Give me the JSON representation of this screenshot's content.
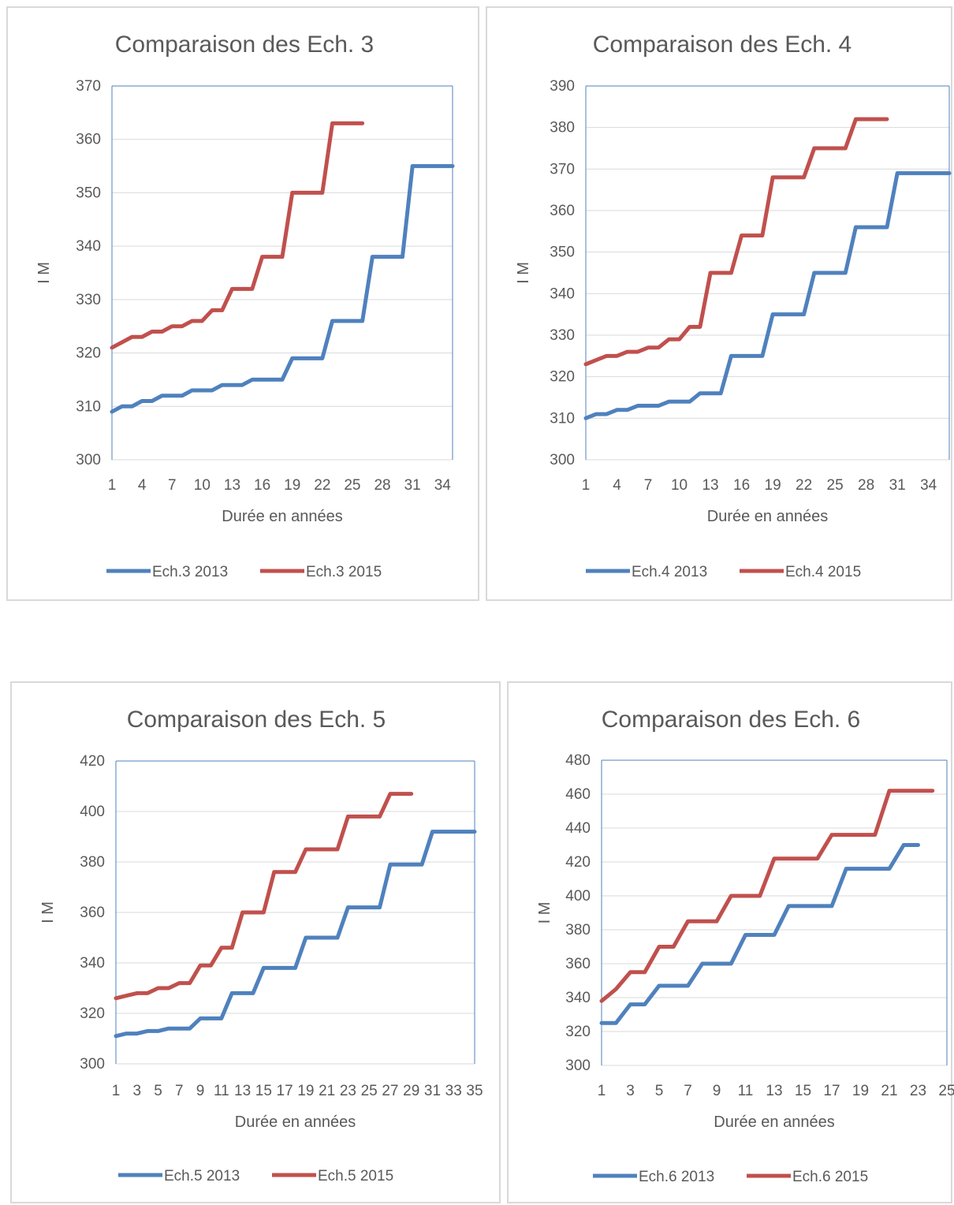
{
  "colors": {
    "series_2013": "#4f81bd",
    "series_2015": "#c0504d",
    "grid": "#d9d9d9",
    "plot_border": "#4f81bd",
    "text": "#595959"
  },
  "chart_data": [
    {
      "type": "line",
      "title": "Comparaison des Ech. 3",
      "xlabel": "Durée en années",
      "ylabel": "I M",
      "ylim": [
        300,
        370
      ],
      "yticks": [
        300,
        310,
        320,
        330,
        340,
        350,
        360,
        370
      ],
      "xlim": [
        1,
        35
      ],
      "xticks": [
        1,
        4,
        7,
        10,
        13,
        16,
        19,
        22,
        25,
        28,
        31,
        34
      ],
      "grid": true,
      "legend": "bottom",
      "series": [
        {
          "name": "Ech.3 2013",
          "x": [
            1,
            2,
            3,
            4,
            5,
            6,
            7,
            8,
            9,
            10,
            11,
            12,
            13,
            14,
            15,
            16,
            17,
            18,
            19,
            20,
            21,
            22,
            23,
            24,
            25,
            26,
            27,
            28,
            29,
            30,
            31,
            32,
            33,
            34,
            35
          ],
          "values": [
            309,
            310,
            310,
            311,
            311,
            312,
            312,
            312,
            313,
            313,
            313,
            314,
            314,
            314,
            315,
            315,
            315,
            315,
            319,
            319,
            319,
            319,
            326,
            326,
            326,
            326,
            338,
            338,
            338,
            338,
            355,
            355,
            355,
            355,
            355
          ]
        },
        {
          "name": "Ech.3 2015",
          "x": [
            1,
            2,
            3,
            4,
            5,
            6,
            7,
            8,
            9,
            10,
            11,
            12,
            13,
            14,
            15,
            16,
            17,
            18,
            19,
            20,
            21,
            22,
            23,
            24,
            25,
            26
          ],
          "values": [
            321,
            322,
            323,
            323,
            324,
            324,
            325,
            325,
            326,
            326,
            328,
            328,
            332,
            332,
            332,
            338,
            338,
            338,
            350,
            350,
            350,
            350,
            363,
            363,
            363,
            363
          ]
        }
      ]
    },
    {
      "type": "line",
      "title": "Comparaison des Ech. 4",
      "xlabel": "Durée en années",
      "ylabel": "I M",
      "ylim": [
        300,
        390
      ],
      "yticks": [
        300,
        310,
        320,
        330,
        340,
        350,
        360,
        370,
        380,
        390
      ],
      "xlim": [
        1,
        36
      ],
      "xticks": [
        1,
        4,
        7,
        10,
        13,
        16,
        19,
        22,
        25,
        28,
        31,
        34
      ],
      "grid": true,
      "legend": "bottom",
      "series": [
        {
          "name": "Ech.4 2013",
          "x": [
            1,
            2,
            3,
            4,
            5,
            6,
            7,
            8,
            9,
            10,
            11,
            12,
            13,
            14,
            15,
            16,
            17,
            18,
            19,
            20,
            21,
            22,
            23,
            24,
            25,
            26,
            27,
            28,
            29,
            30,
            31,
            32,
            33,
            34,
            35,
            36
          ],
          "values": [
            310,
            311,
            311,
            312,
            312,
            313,
            313,
            313,
            314,
            314,
            314,
            316,
            316,
            316,
            325,
            325,
            325,
            325,
            335,
            335,
            335,
            335,
            345,
            345,
            345,
            345,
            356,
            356,
            356,
            356,
            369,
            369,
            369,
            369,
            369,
            369
          ]
        },
        {
          "name": "Ech.4 2015",
          "x": [
            1,
            2,
            3,
            4,
            5,
            6,
            7,
            8,
            9,
            10,
            11,
            12,
            13,
            14,
            15,
            16,
            17,
            18,
            19,
            20,
            21,
            22,
            23,
            24,
            25,
            26,
            27,
            28,
            29,
            30
          ],
          "values": [
            323,
            324,
            325,
            325,
            326,
            326,
            327,
            327,
            329,
            329,
            332,
            332,
            345,
            345,
            345,
            354,
            354,
            354,
            368,
            368,
            368,
            368,
            375,
            375,
            375,
            375,
            382,
            382,
            382,
            382
          ]
        }
      ]
    },
    {
      "type": "line",
      "title": "Comparaison des Ech. 5",
      "xlabel": "Durée en années",
      "ylabel": "I M",
      "ylim": [
        300,
        420
      ],
      "yticks": [
        300,
        320,
        340,
        360,
        380,
        400,
        420
      ],
      "xlim": [
        1,
        35
      ],
      "xticks": [
        1,
        3,
        5,
        7,
        9,
        11,
        13,
        15,
        17,
        19,
        21,
        23,
        25,
        27,
        29,
        31,
        33,
        35
      ],
      "xticklabels": [
        "1",
        "3",
        "5",
        "7",
        "9",
        "11",
        "13",
        "15",
        "17",
        "19",
        "21",
        "23",
        "25",
        "27",
        "29",
        "31",
        "33",
        "35"
      ],
      "grid": true,
      "legend": "bottom",
      "series": [
        {
          "name": "Ech.5 2013",
          "x": [
            1,
            2,
            3,
            4,
            5,
            6,
            7,
            8,
            9,
            10,
            11,
            12,
            13,
            14,
            15,
            16,
            17,
            18,
            19,
            20,
            21,
            22,
            23,
            24,
            25,
            26,
            27,
            28,
            29,
            30,
            31,
            32,
            33,
            34,
            35
          ],
          "values": [
            311,
            312,
            312,
            313,
            313,
            314,
            314,
            314,
            318,
            318,
            318,
            328,
            328,
            328,
            338,
            338,
            338,
            338,
            350,
            350,
            350,
            350,
            362,
            362,
            362,
            362,
            379,
            379,
            379,
            379,
            392,
            392,
            392,
            392,
            392
          ]
        },
        {
          "name": "Ech.5 2015",
          "x": [
            1,
            2,
            3,
            4,
            5,
            6,
            7,
            8,
            9,
            10,
            11,
            12,
            13,
            14,
            15,
            16,
            17,
            18,
            19,
            20,
            21,
            22,
            23,
            24,
            25,
            26,
            27,
            28,
            29
          ],
          "values": [
            326,
            327,
            328,
            328,
            330,
            330,
            332,
            332,
            339,
            339,
            346,
            346,
            360,
            360,
            360,
            376,
            376,
            376,
            385,
            385,
            385,
            385,
            398,
            398,
            398,
            398,
            407,
            407,
            407
          ]
        }
      ]
    },
    {
      "type": "line",
      "title": "Comparaison des Ech. 6",
      "xlabel": "Durée en années",
      "ylabel": "I M",
      "ylim": [
        300,
        480
      ],
      "yticks": [
        300,
        320,
        340,
        360,
        380,
        400,
        420,
        440,
        460,
        480
      ],
      "xlim": [
        1,
        25
      ],
      "xticks": [
        1,
        3,
        5,
        7,
        9,
        11,
        13,
        15,
        17,
        19,
        21,
        23,
        25
      ],
      "grid": true,
      "legend": "bottom",
      "series": [
        {
          "name": "Ech.6 2013",
          "x": [
            1,
            2,
            3,
            4,
            5,
            6,
            7,
            8,
            9,
            10,
            11,
            12,
            13,
            14,
            15,
            16,
            17,
            18,
            19,
            20,
            21,
            22,
            23
          ],
          "values": [
            325,
            325,
            336,
            336,
            347,
            347,
            347,
            360,
            360,
            360,
            377,
            377,
            377,
            394,
            394,
            394,
            394,
            416,
            416,
            416,
            416,
            430,
            430
          ]
        },
        {
          "name": "Ech.6 2015",
          "x": [
            1,
            2,
            3,
            4,
            5,
            6,
            7,
            8,
            9,
            10,
            11,
            12,
            13,
            14,
            15,
            16,
            17,
            18,
            19,
            20,
            21,
            22,
            23,
            24
          ],
          "values": [
            338,
            345,
            355,
            355,
            370,
            370,
            385,
            385,
            385,
            400,
            400,
            400,
            422,
            422,
            422,
            422,
            436,
            436,
            436,
            436,
            462,
            462,
            462,
            462
          ]
        }
      ]
    }
  ]
}
